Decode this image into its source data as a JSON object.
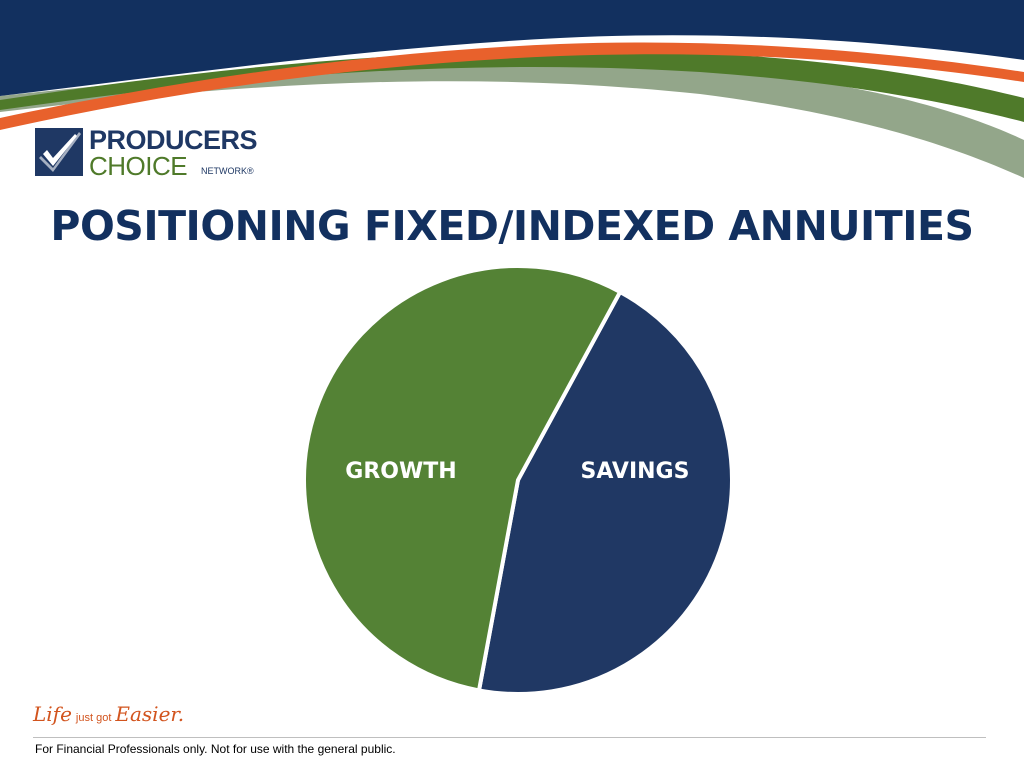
{
  "logo": {
    "line1": "PRODUCERS",
    "line2": "CHOICE",
    "line3": "NETWORK®"
  },
  "title": "POSITIONING FIXED/INDEXED ANNUITIES",
  "tagline": {
    "part1": "Life",
    "part2": "just got",
    "part3": "Easier."
  },
  "footer": {
    "disclaimer": "For Financial Professionals only. Not for use with the general public."
  },
  "colors": {
    "navy": "#1f3864",
    "green": "#548235",
    "orange": "#e8612c",
    "sage": "#93a68a"
  },
  "icons": [
    "check-mark-icon"
  ],
  "chart_data": {
    "type": "pie",
    "title": "",
    "slices": [
      {
        "label": "GROWTH",
        "value": 55,
        "color": "#548235"
      },
      {
        "label": "SAVINGS",
        "value": 45,
        "color": "#203864"
      }
    ]
  }
}
